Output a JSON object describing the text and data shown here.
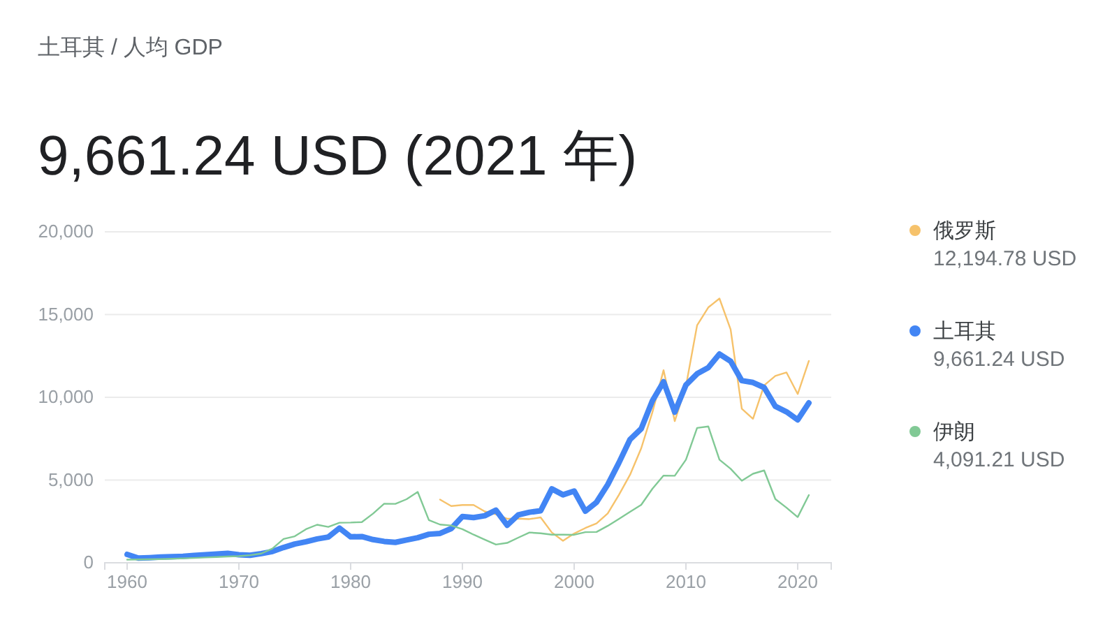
{
  "chart_data": {
    "type": "line",
    "title": "土耳其 / 人均 GDP",
    "subtitle": "9,661.24 USD (2021 年)",
    "x": [
      1960,
      1961,
      1962,
      1963,
      1964,
      1965,
      1966,
      1967,
      1968,
      1969,
      1970,
      1971,
      1972,
      1973,
      1974,
      1975,
      1976,
      1977,
      1978,
      1979,
      1980,
      1981,
      1982,
      1983,
      1984,
      1985,
      1986,
      1987,
      1988,
      1989,
      1990,
      1991,
      1992,
      1993,
      1994,
      1995,
      1996,
      1997,
      1998,
      1999,
      2000,
      2001,
      2002,
      2003,
      2004,
      2005,
      2006,
      2007,
      2008,
      2009,
      2010,
      2011,
      2012,
      2013,
      2014,
      2015,
      2016,
      2017,
      2018,
      2019,
      2020,
      2021
    ],
    "series": [
      {
        "name": "俄罗斯",
        "color": "#f6c26b",
        "values": [
          null,
          null,
          null,
          null,
          null,
          null,
          null,
          null,
          null,
          null,
          null,
          null,
          null,
          null,
          null,
          null,
          null,
          null,
          null,
          null,
          null,
          null,
          null,
          null,
          null,
          null,
          null,
          null,
          3820,
          3430,
          3490,
          3490,
          3100,
          2930,
          2660,
          2670,
          2640,
          2740,
          1830,
          1330,
          1770,
          2100,
          2380,
          2980,
          4100,
          5320,
          6920,
          9100,
          11640,
          8560,
          10670,
          14350,
          15430,
          15970,
          14100,
          9310,
          8700,
          10720,
          11290,
          11500,
          10200,
          12194.78
        ]
      },
      {
        "name": "土耳其",
        "color": "#4285f4",
        "values": [
          509,
          283,
          310,
          350,
          366,
          386,
          444,
          482,
          524,
          569,
          489,
          453,
          553,
          682,
          925,
          1136,
          1268,
          1438,
          1556,
          2096,
          1567,
          1587,
          1401,
          1290,
          1235,
          1374,
          1514,
          1725,
          1776,
          2067,
          2794,
          2735,
          2842,
          3180,
          2270,
          2897,
          3053,
          3144,
          4468,
          4109,
          4337,
          3119,
          3660,
          4718,
          6040,
          7456,
          8101,
          9792,
          10941,
          9103,
          10743,
          11421,
          11796,
          12615,
          12179,
          11006,
          10895,
          10590,
          9454,
          9121,
          8638,
          9661.24
        ]
      },
      {
        "name": "伊朗",
        "color": "#81c995",
        "values": [
          190,
          200,
          210,
          220,
          240,
          270,
          290,
          320,
          350,
          380,
          400,
          460,
          560,
          860,
          1440,
          1600,
          2030,
          2300,
          2170,
          2420,
          2430,
          2460,
          2970,
          3570,
          3560,
          3840,
          4280,
          2580,
          2310,
          2250,
          2030,
          1700,
          1400,
          1100,
          1200,
          1520,
          1830,
          1780,
          1700,
          1700,
          1690,
          1850,
          1860,
          2230,
          2650,
          3080,
          3500,
          4470,
          5270,
          5260,
          6230,
          8150,
          8240,
          6230,
          5680,
          4960,
          5380,
          5580,
          3850,
          3330,
          2760,
          4091.21
        ]
      }
    ],
    "annotations": [
      "12,194.78 USD",
      "9,661.24 USD",
      "4,091.21 USD"
    ],
    "xlim": [
      1958,
      2023
    ],
    "xticks": [
      1960,
      1970,
      1980,
      1990,
      2000,
      2010,
      2020
    ],
    "ylim": [
      0,
      20000
    ],
    "yticks": [
      {
        "value": 0,
        "label": "0"
      },
      {
        "value": 5000,
        "label": "5,000"
      },
      {
        "value": 10000,
        "label": "10,000"
      },
      {
        "value": 15000,
        "label": "15,000"
      },
      {
        "value": 20000,
        "label": "20,000"
      }
    ],
    "grid": "y",
    "legend": "right",
    "marker": "none",
    "line_style": "solid"
  }
}
